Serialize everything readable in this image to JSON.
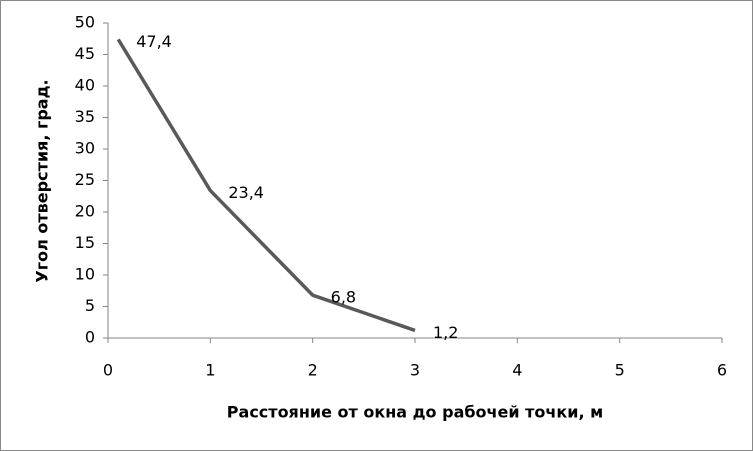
{
  "chart_data": {
    "type": "line",
    "x": [
      0.1,
      1,
      2,
      3
    ],
    "values": [
      47.4,
      23.4,
      6.8,
      1.2
    ],
    "value_labels": [
      "47,4",
      "23,4",
      "6,8",
      "1,2"
    ],
    "color": "#595959",
    "xlabel": "Расстояние от окна до рабочей точки, м",
    "ylabel": "Угол отверстия, град.",
    "xlim": [
      0,
      6
    ],
    "xticks": [
      0,
      1,
      2,
      3,
      4,
      5,
      6
    ],
    "ylim": [
      0,
      50
    ],
    "yticks": [
      0,
      5,
      10,
      15,
      20,
      25,
      30,
      35,
      40,
      45,
      50
    ],
    "grid": false
  }
}
